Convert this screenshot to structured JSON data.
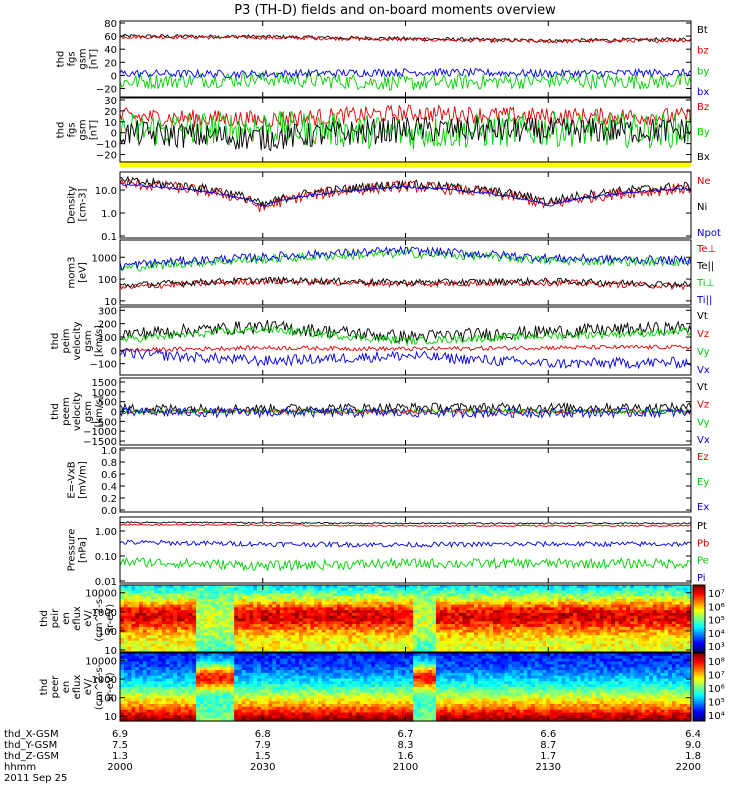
{
  "title": "P3 (TH-D) fields and on-board moments overview",
  "colors": {
    "black": "#000000",
    "red": "#e00000",
    "green": "#00d000",
    "blue": "#0000e0",
    "yellow": "#ffff00"
  },
  "chart_data": {
    "type": "line",
    "x_ticks": [
      "2000",
      "2030",
      "2100",
      "2130",
      "2200"
    ],
    "x_minutes": [
      0,
      30,
      60,
      90,
      120
    ],
    "ephemeris": {
      "labels": [
        "thd_X-GSM",
        "thd_Y-GSM",
        "thd_Z-GSM",
        "hhmm",
        "2011 Sep 25"
      ],
      "rows": [
        [
          "6.9",
          "6.8",
          "6.7",
          "6.6",
          "6.4"
        ],
        [
          "7.5",
          "7.9",
          "8.3",
          "8.7",
          "9.0"
        ],
        [
          "1.3",
          "1.5",
          "1.6",
          "1.7",
          "1.8"
        ],
        [
          "2000",
          "2030",
          "2100",
          "2130",
          "2200"
        ]
      ]
    },
    "panels": [
      {
        "ylabel": [
          "thd",
          "fgs",
          "gsm",
          "[nT]"
        ],
        "scale": "linear",
        "ylim": [
          -30,
          80
        ],
        "ticks": [
          "80",
          "60",
          "40",
          "20",
          "0",
          "−20"
        ],
        "tick_values": [
          80,
          60,
          40,
          20,
          0,
          -20
        ],
        "series": [
          {
            "name": "Bt",
            "color": "black",
            "base": [
              60,
              59,
              56,
              53,
              55
            ],
            "noise": 1.5
          },
          {
            "name": "bz",
            "color": "red",
            "base": [
              59,
              58,
              55,
              52,
              54
            ],
            "noise": 1.5
          },
          {
            "name": "by",
            "color": "green",
            "base": [
              -10,
              -5,
              -12,
              -8,
              -10
            ],
            "noise": 6
          },
          {
            "name": "bx",
            "color": "blue",
            "base": [
              3,
              2,
              5,
              3,
              4
            ],
            "noise": 3
          }
        ]
      },
      {
        "ylabel": [
          "thd",
          "fgs",
          "gsm",
          "[nT]"
        ],
        "scale": "linear",
        "ylim": [
          -25,
          30
        ],
        "ticks": [
          "30",
          "20",
          "10",
          "0",
          "−10",
          "−20"
        ],
        "tick_values": [
          30,
          20,
          10,
          0,
          -10,
          -20
        ],
        "series": [
          {
            "name": "Bz",
            "color": "red",
            "base": [
              15,
              12,
              18,
              15,
              15
            ],
            "noise": 4
          },
          {
            "name": "By",
            "color": "green",
            "base": [
              2,
              5,
              0,
              3,
              2
            ],
            "noise": 8
          },
          {
            "name": "Bx",
            "color": "black",
            "base": [
              0,
              -5,
              3,
              2,
              2
            ],
            "noise": 6
          }
        ]
      },
      {
        "ylabel": [
          "Density",
          "[cm-3]"
        ],
        "scale": "log",
        "ylim": [
          0.1,
          50
        ],
        "ticks": [
          "10.0",
          "1.0",
          "0.1"
        ],
        "tick_values": [
          10,
          1,
          0.1
        ],
        "series": [
          {
            "name": "Ne",
            "color": "red",
            "base": [
              20,
              1.5,
              15,
              2,
              12
            ],
            "noise": 0.25
          },
          {
            "name": "Ni",
            "color": "black",
            "base": [
              25,
              2,
              18,
              3,
              15
            ],
            "noise": 0.2
          },
          {
            "name": "Npot",
            "color": "blue",
            "base": [
              18,
              2,
              14,
              2,
              12
            ],
            "noise": 0.05
          }
        ]
      },
      {
        "ylabel": [
          "mom3",
          "[eV]"
        ],
        "scale": "log",
        "ylim": [
          8,
          5000
        ],
        "ticks": [
          "1000",
          "100",
          "10"
        ],
        "tick_values": [
          1000,
          100,
          10
        ],
        "series": [
          {
            "name": "Te⊥",
            "color": "red",
            "base": [
              40,
              80,
              60,
              70,
              45
            ],
            "noise": 0.15
          },
          {
            "name": "Te||",
            "color": "black",
            "base": [
              50,
              90,
              70,
              80,
              55
            ],
            "noise": 0.15
          },
          {
            "name": "Ti⊥",
            "color": "green",
            "base": [
              300,
              800,
              1500,
              700,
              600
            ],
            "noise": 0.2
          },
          {
            "name": "Ti||",
            "color": "blue",
            "base": [
              400,
              1000,
              2000,
              900,
              700
            ],
            "noise": 0.2
          }
        ]
      },
      {
        "ylabel": [
          "thd",
          "peim",
          "velocity",
          "gsm",
          "[km/s]"
        ],
        "scale": "linear",
        "ylim": [
          -170,
          310
        ],
        "ticks": [
          "300",
          "200",
          "100",
          "0",
          "−100"
        ],
        "tick_values": [
          300,
          200,
          100,
          0,
          -100
        ],
        "series": [
          {
            "name": "Vt",
            "color": "black",
            "base": [
              120,
              180,
              100,
              140,
              170
            ],
            "noise": 25
          },
          {
            "name": "Vz",
            "color": "red",
            "base": [
              0,
              20,
              10,
              20,
              25
            ],
            "noise": 8
          },
          {
            "name": "Vy",
            "color": "green",
            "base": [
              80,
              160,
              70,
              110,
              140
            ],
            "noise": 15
          },
          {
            "name": "Vx",
            "color": "blue",
            "base": [
              -20,
              -80,
              -40,
              -100,
              -90
            ],
            "noise": 20
          }
        ]
      },
      {
        "ylabel": [
          "thd",
          "peem",
          "velocity",
          "gsm",
          "[km/s]"
        ],
        "scale": "linear",
        "ylim": [
          -1600,
          1600
        ],
        "ticks": [
          "1500",
          "1000",
          "500",
          "0",
          "−500",
          "−1000",
          "−1500"
        ],
        "tick_values": [
          1500,
          1000,
          500,
          0,
          -500,
          -1000,
          -1500
        ],
        "series": [
          {
            "name": "Vt",
            "color": "black",
            "base": [
              150,
              150,
              200,
              200,
              200
            ],
            "noise": 120
          },
          {
            "name": "Vz",
            "color": "red",
            "base": [
              0,
              0,
              0,
              0,
              0
            ],
            "noise": 60
          },
          {
            "name": "Vy",
            "color": "green",
            "base": [
              0,
              0,
              0,
              0,
              0
            ],
            "noise": 50
          },
          {
            "name": "Vx",
            "color": "blue",
            "base": [
              -50,
              -50,
              -60,
              -60,
              -50
            ],
            "noise": 120
          }
        ]
      },
      {
        "ylabel": [
          "E=-VxB",
          "[mV/m]"
        ],
        "scale": "linear",
        "ylim": [
          0,
          1
        ],
        "ticks": [
          "1.0",
          "0.8",
          "0.6",
          "0.4",
          "0.2",
          "0.0"
        ],
        "tick_values": [
          1,
          0.8,
          0.6,
          0.4,
          0.2,
          0
        ],
        "series": [
          {
            "name": "Ez",
            "color": "red"
          },
          {
            "name": "Ey",
            "color": "green"
          },
          {
            "name": "Ex",
            "color": "blue"
          }
        ]
      },
      {
        "ylabel": [
          "Pressure",
          "[nPa]"
        ],
        "scale": "log",
        "ylim": [
          0.01,
          3
        ],
        "ticks": [
          "1.00",
          "0.10",
          "0.01"
        ],
        "tick_values": [
          1,
          0.1,
          0.01
        ],
        "series": [
          {
            "name": "Pt",
            "color": "black",
            "base": [
              2.2,
              2.1,
              2.0,
              2.0,
              2.0
            ],
            "noise": 0.03
          },
          {
            "name": "Pb",
            "color": "red",
            "base": [
              1.8,
              1.7,
              1.6,
              1.6,
              1.6
            ],
            "noise": 0.03
          },
          {
            "name": "Pe",
            "color": "green",
            "base": [
              0.06,
              0.04,
              0.05,
              0.05,
              0.05
            ],
            "noise": 0.2
          },
          {
            "name": "Pi",
            "color": "blue",
            "base": [
              0.35,
              0.3,
              0.28,
              0.3,
              0.3
            ],
            "noise": 0.1
          }
        ]
      },
      {
        "type": "heatmap",
        "ylabel": [
          "thd",
          "peir",
          "en",
          "eflux",
          "eV/",
          "(cm^2-s-",
          "sr-eV)"
        ],
        "scale": "log",
        "ylim": [
          10,
          20000
        ],
        "ticks": [
          "10000",
          "1000",
          "100",
          "10"
        ],
        "tick_values": [
          10000,
          1000,
          100,
          10
        ],
        "colorbar_ticks": [
          "10⁷",
          "10⁶",
          "10⁵",
          "10⁴",
          "10³"
        ],
        "colorbar_range": [
          3,
          7
        ]
      },
      {
        "type": "heatmap",
        "ylabel": [
          "thd",
          "peer",
          "en",
          "eflux",
          "eV/",
          "(cm^2-s-",
          "sr-eV)"
        ],
        "scale": "log",
        "ylim": [
          7,
          20000
        ],
        "ticks": [
          "10000",
          "1000",
          "100",
          "10"
        ],
        "tick_values": [
          10000,
          1000,
          100,
          10
        ],
        "colorbar_ticks": [
          "10⁸",
          "10⁷",
          "10⁶",
          "10⁵",
          "10⁴"
        ],
        "colorbar_range": [
          4,
          8
        ]
      }
    ]
  }
}
